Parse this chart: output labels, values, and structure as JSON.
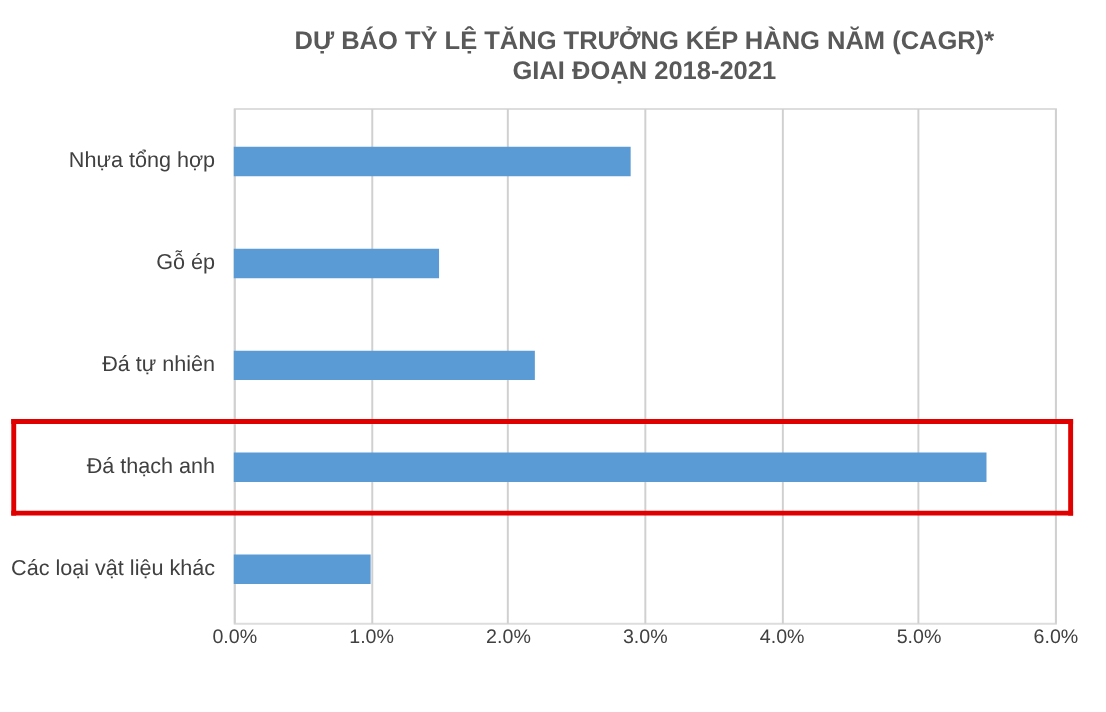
{
  "chart_data": {
    "type": "bar",
    "orientation": "horizontal",
    "title": "DỰ BÁO TỶ LỆ TĂNG TRƯỞNG KÉP HÀNG NĂM (CAGR)*\nGIAI ĐOẠN 2018-2021",
    "categories": [
      "Nhựa tổng hợp",
      "Gỗ ép",
      "Đá tự nhiên",
      "Đá thạch anh",
      "Các loại vật liệu khác"
    ],
    "values": [
      0.029,
      0.015,
      0.022,
      0.055,
      0.01
    ],
    "color": "#5b9bd5",
    "xlim": [
      0,
      0.06
    ],
    "xticks": [
      {
        "value": 0,
        "label": "0.0%"
      },
      {
        "value": 0.01,
        "label": "1.0%"
      },
      {
        "value": 0.02,
        "label": "2.0%"
      },
      {
        "value": 0.03,
        "label": "3.0%"
      },
      {
        "value": 0.04,
        "label": "4.0%"
      },
      {
        "value": 0.05,
        "label": "5.0%"
      },
      {
        "value": 0.06,
        "label": "6.0%"
      }
    ],
    "grid": "x"
  }
}
